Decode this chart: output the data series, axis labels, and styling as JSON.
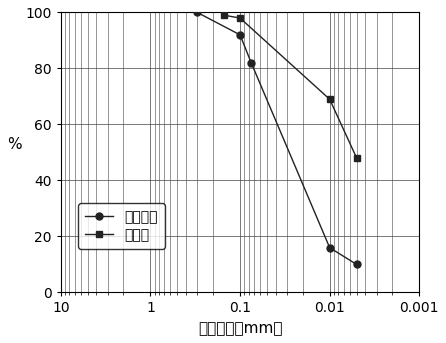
{
  "series1_name": "粉质粘土",
  "series1_x": [
    0.3,
    0.1,
    0.075,
    0.01,
    0.005
  ],
  "series1_y": [
    100,
    92,
    82,
    16,
    10
  ],
  "series1_marker": "o",
  "series1_color": "#222222",
  "series2_name": "软粘土",
  "series2_x": [
    0.15,
    0.1,
    0.01,
    0.005
  ],
  "series2_y": [
    99,
    98,
    69,
    48
  ],
  "series2_marker": "s",
  "series2_color": "#222222",
  "xlabel": "颗粒粒径（mm）",
  "ylabel": "%",
  "xlim_left": 10,
  "xlim_right": 0.001,
  "ylim": [
    0,
    100
  ],
  "xticks": [
    10,
    1,
    0.1,
    0.01,
    0.001
  ],
  "xtick_labels": [
    "10",
    "1",
    "0.1",
    "0.01",
    "0.001"
  ],
  "yticks": [
    0,
    20,
    40,
    60,
    80,
    100
  ],
  "grid_color": "#444444",
  "background_color": "#ffffff",
  "font_size": 10,
  "label_font_size": 11
}
